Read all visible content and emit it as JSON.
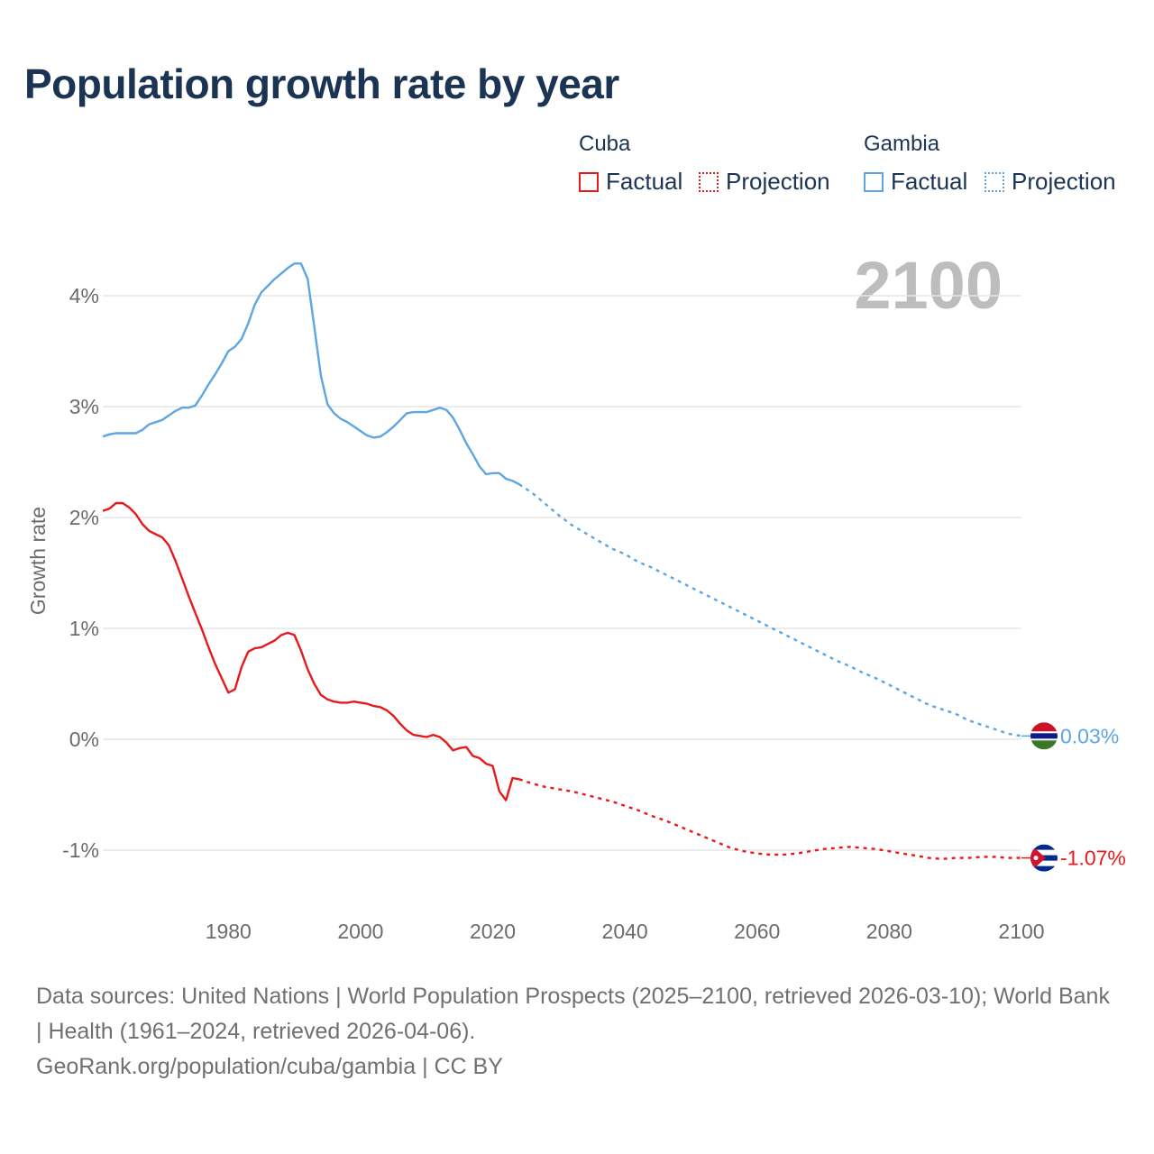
{
  "title": "Population growth rate by year",
  "legend": {
    "groups": [
      {
        "name": "Cuba",
        "factual": "Factual",
        "projection": "Projection"
      },
      {
        "name": "Gambia",
        "factual": "Factual",
        "projection": "Projection"
      }
    ]
  },
  "colors": {
    "cuba": "#e8191b",
    "gambia": "#5ea5e3",
    "grid": "#e6e6e6",
    "axis_text": "#6b6b6b",
    "year_label": "#bdbdbd"
  },
  "chart_data": {
    "type": "line",
    "year_label": "2100",
    "ylabel": "Growth rate",
    "ylim": [
      -1.5,
      4.6
    ],
    "xlim": [
      1961,
      2100
    ],
    "yticks": [
      {
        "value": 4,
        "label": "4%"
      },
      {
        "value": 3,
        "label": "3%"
      },
      {
        "value": 2,
        "label": "2%"
      },
      {
        "value": 1,
        "label": "1%"
      },
      {
        "value": 0,
        "label": "0%"
      },
      {
        "value": -1,
        "label": "-1%"
      }
    ],
    "xticks": [
      {
        "value": 1980,
        "label": "1980"
      },
      {
        "value": 2000,
        "label": "2000"
      },
      {
        "value": 2020,
        "label": "2020"
      },
      {
        "value": 2040,
        "label": "2040"
      },
      {
        "value": 2060,
        "label": "2060"
      },
      {
        "value": 2080,
        "label": "2080"
      },
      {
        "value": 2100,
        "label": "2100"
      }
    ],
    "series": [
      {
        "name": "Gambia",
        "color": "#5ea5e3",
        "end_label": "0.03%",
        "factual": [
          [
            1961,
            2.73
          ],
          [
            1962,
            2.75
          ],
          [
            1963,
            2.76
          ],
          [
            1964,
            2.76
          ],
          [
            1965,
            2.76
          ],
          [
            1966,
            2.76
          ],
          [
            1967,
            2.79
          ],
          [
            1968,
            2.84
          ],
          [
            1969,
            2.86
          ],
          [
            1970,
            2.88
          ],
          [
            1971,
            2.92
          ],
          [
            1972,
            2.96
          ],
          [
            1973,
            2.99
          ],
          [
            1974,
            2.99
          ],
          [
            1975,
            3.01
          ],
          [
            1976,
            3.1
          ],
          [
            1977,
            3.2
          ],
          [
            1978,
            3.29
          ],
          [
            1979,
            3.39
          ],
          [
            1980,
            3.5
          ],
          [
            1981,
            3.54
          ],
          [
            1982,
            3.61
          ],
          [
            1983,
            3.75
          ],
          [
            1984,
            3.92
          ],
          [
            1985,
            4.03
          ],
          [
            1986,
            4.09
          ],
          [
            1987,
            4.15
          ],
          [
            1988,
            4.2
          ],
          [
            1989,
            4.25
          ],
          [
            1990,
            4.29
          ],
          [
            1991,
            4.29
          ],
          [
            1992,
            4.15
          ],
          [
            1993,
            3.72
          ],
          [
            1994,
            3.28
          ],
          [
            1995,
            3.02
          ],
          [
            1996,
            2.94
          ],
          [
            1997,
            2.89
          ],
          [
            1998,
            2.86
          ],
          [
            1999,
            2.82
          ],
          [
            2000,
            2.78
          ],
          [
            2001,
            2.74
          ],
          [
            2002,
            2.72
          ],
          [
            2003,
            2.73
          ],
          [
            2004,
            2.77
          ],
          [
            2005,
            2.82
          ],
          [
            2006,
            2.88
          ],
          [
            2007,
            2.94
          ],
          [
            2008,
            2.95
          ],
          [
            2009,
            2.95
          ],
          [
            2010,
            2.95
          ],
          [
            2011,
            2.97
          ],
          [
            2012,
            2.99
          ],
          [
            2013,
            2.97
          ],
          [
            2014,
            2.9
          ],
          [
            2015,
            2.79
          ],
          [
            2016,
            2.67
          ],
          [
            2017,
            2.57
          ],
          [
            2018,
            2.46
          ],
          [
            2019,
            2.39
          ],
          [
            2020,
            2.4
          ],
          [
            2021,
            2.4
          ],
          [
            2022,
            2.35
          ],
          [
            2023,
            2.33
          ],
          [
            2024,
            2.3
          ]
        ],
        "projection": [
          [
            2024,
            2.3
          ],
          [
            2026,
            2.22
          ],
          [
            2028,
            2.12
          ],
          [
            2030,
            2.02
          ],
          [
            2032,
            1.93
          ],
          [
            2034,
            1.86
          ],
          [
            2036,
            1.79
          ],
          [
            2038,
            1.72
          ],
          [
            2040,
            1.67
          ],
          [
            2042,
            1.6
          ],
          [
            2044,
            1.55
          ],
          [
            2046,
            1.49
          ],
          [
            2048,
            1.43
          ],
          [
            2050,
            1.37
          ],
          [
            2052,
            1.31
          ],
          [
            2054,
            1.25
          ],
          [
            2056,
            1.19
          ],
          [
            2058,
            1.13
          ],
          [
            2060,
            1.07
          ],
          [
            2062,
            1.01
          ],
          [
            2064,
            0.95
          ],
          [
            2066,
            0.89
          ],
          [
            2068,
            0.83
          ],
          [
            2070,
            0.77
          ],
          [
            2072,
            0.71
          ],
          [
            2074,
            0.66
          ],
          [
            2076,
            0.6
          ],
          [
            2078,
            0.55
          ],
          [
            2080,
            0.49
          ],
          [
            2082,
            0.43
          ],
          [
            2084,
            0.37
          ],
          [
            2086,
            0.31
          ],
          [
            2088,
            0.27
          ],
          [
            2090,
            0.23
          ],
          [
            2092,
            0.17
          ],
          [
            2094,
            0.13
          ],
          [
            2096,
            0.09
          ],
          [
            2098,
            0.05
          ],
          [
            2100,
            0.03
          ]
        ]
      },
      {
        "name": "Cuba",
        "color": "#e8191b",
        "end_label": "-1.07%",
        "factual": [
          [
            1961,
            2.06
          ],
          [
            1962,
            2.08
          ],
          [
            1963,
            2.13
          ],
          [
            1964,
            2.13
          ],
          [
            1965,
            2.09
          ],
          [
            1966,
            2.03
          ],
          [
            1967,
            1.94
          ],
          [
            1968,
            1.88
          ],
          [
            1969,
            1.85
          ],
          [
            1970,
            1.82
          ],
          [
            1971,
            1.75
          ],
          [
            1972,
            1.61
          ],
          [
            1973,
            1.45
          ],
          [
            1974,
            1.29
          ],
          [
            1975,
            1.14
          ],
          [
            1976,
            0.99
          ],
          [
            1977,
            0.83
          ],
          [
            1978,
            0.68
          ],
          [
            1979,
            0.55
          ],
          [
            1980,
            0.42
          ],
          [
            1981,
            0.45
          ],
          [
            1982,
            0.65
          ],
          [
            1983,
            0.79
          ],
          [
            1984,
            0.82
          ],
          [
            1985,
            0.83
          ],
          [
            1986,
            0.86
          ],
          [
            1987,
            0.89
          ],
          [
            1988,
            0.94
          ],
          [
            1989,
            0.96
          ],
          [
            1990,
            0.94
          ],
          [
            1991,
            0.8
          ],
          [
            1992,
            0.63
          ],
          [
            1993,
            0.5
          ],
          [
            1994,
            0.4
          ],
          [
            1995,
            0.36
          ],
          [
            1996,
            0.34
          ],
          [
            1997,
            0.33
          ],
          [
            1998,
            0.33
          ],
          [
            1999,
            0.34
          ],
          [
            2000,
            0.33
          ],
          [
            2001,
            0.32
          ],
          [
            2002,
            0.3
          ],
          [
            2003,
            0.29
          ],
          [
            2004,
            0.26
          ],
          [
            2005,
            0.21
          ],
          [
            2006,
            0.14
          ],
          [
            2007,
            0.08
          ],
          [
            2008,
            0.04
          ],
          [
            2009,
            0.03
          ],
          [
            2010,
            0.02
          ],
          [
            2011,
            0.04
          ],
          [
            2012,
            0.02
          ],
          [
            2013,
            -0.03
          ],
          [
            2014,
            -0.1
          ],
          [
            2015,
            -0.08
          ],
          [
            2016,
            -0.07
          ],
          [
            2017,
            -0.15
          ],
          [
            2018,
            -0.17
          ],
          [
            2019,
            -0.22
          ],
          [
            2020,
            -0.24
          ],
          [
            2021,
            -0.47
          ],
          [
            2022,
            -0.55
          ],
          [
            2023,
            -0.35
          ],
          [
            2024,
            -0.36
          ]
        ],
        "projection": [
          [
            2024,
            -0.36
          ],
          [
            2026,
            -0.4
          ],
          [
            2028,
            -0.43
          ],
          [
            2030,
            -0.45
          ],
          [
            2032,
            -0.47
          ],
          [
            2034,
            -0.5
          ],
          [
            2036,
            -0.53
          ],
          [
            2038,
            -0.56
          ],
          [
            2040,
            -0.6
          ],
          [
            2042,
            -0.64
          ],
          [
            2044,
            -0.69
          ],
          [
            2046,
            -0.73
          ],
          [
            2048,
            -0.78
          ],
          [
            2050,
            -0.83
          ],
          [
            2052,
            -0.88
          ],
          [
            2054,
            -0.93
          ],
          [
            2056,
            -0.98
          ],
          [
            2058,
            -1.01
          ],
          [
            2060,
            -1.03
          ],
          [
            2062,
            -1.04
          ],
          [
            2064,
            -1.04
          ],
          [
            2066,
            -1.03
          ],
          [
            2068,
            -1.01
          ],
          [
            2070,
            -0.99
          ],
          [
            2072,
            -0.98
          ],
          [
            2074,
            -0.97
          ],
          [
            2076,
            -0.98
          ],
          [
            2078,
            -0.99
          ],
          [
            2080,
            -1.01
          ],
          [
            2082,
            -1.03
          ],
          [
            2084,
            -1.05
          ],
          [
            2086,
            -1.07
          ],
          [
            2088,
            -1.08
          ],
          [
            2090,
            -1.07
          ],
          [
            2092,
            -1.07
          ],
          [
            2094,
            -1.06
          ],
          [
            2096,
            -1.06
          ],
          [
            2098,
            -1.07
          ],
          [
            2100,
            -1.07
          ]
        ]
      }
    ]
  },
  "footer": {
    "sources": "Data sources: United Nations | World Population Prospects (2025–2100, retrieved 2026-03-10); World Bank | Health (1961–2024, retrieved 2026-04-06).",
    "credit": "GeoRank.org/population/cuba/gambia | CC BY"
  }
}
